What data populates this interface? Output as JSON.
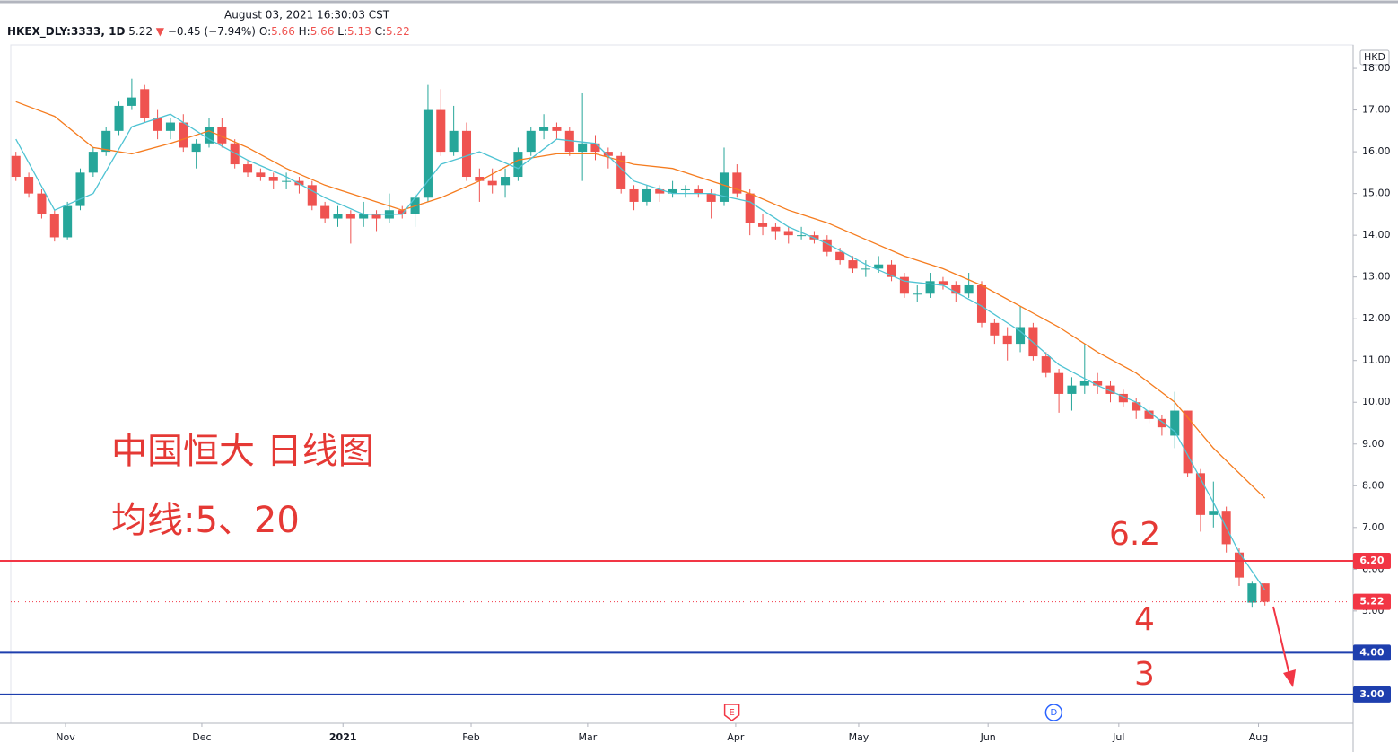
{
  "header": {
    "datetime": "August 03, 2021 16:30:03 CST",
    "symbol": "HKEX_DLY:3333, 1D",
    "last": "5.22",
    "direction": "▼",
    "change": "−0.45 (−7.94%)",
    "ohlc": [
      {
        "label": "O:",
        "value": "5.66"
      },
      {
        "label": "H:",
        "value": "5.66"
      },
      {
        "label": "L:",
        "value": "5.13"
      },
      {
        "label": "C:",
        "value": "5.22"
      }
    ]
  },
  "chart_data": {
    "type": "candlestick",
    "currency": "HKD",
    "up_color": "#26a69a",
    "down_color": "#ef5350",
    "ohlc": [
      [
        15.9,
        16.0,
        15.3,
        15.4
      ],
      [
        15.4,
        15.5,
        14.9,
        15.0
      ],
      [
        15.0,
        15.1,
        14.4,
        14.5
      ],
      [
        14.5,
        14.6,
        13.85,
        13.95
      ],
      [
        13.95,
        14.8,
        13.9,
        14.7
      ],
      [
        14.7,
        15.6,
        14.6,
        15.5
      ],
      [
        15.5,
        16.1,
        15.4,
        16.0
      ],
      [
        16.0,
        16.6,
        15.9,
        16.5
      ],
      [
        16.5,
        17.2,
        16.4,
        17.1
      ],
      [
        17.1,
        17.75,
        17.0,
        17.3
      ],
      [
        17.5,
        17.6,
        16.7,
        16.8
      ],
      [
        16.8,
        17.0,
        16.3,
        16.5
      ],
      [
        16.5,
        16.8,
        16.3,
        16.7
      ],
      [
        16.7,
        16.9,
        16.0,
        16.1
      ],
      [
        16.0,
        16.3,
        15.6,
        16.2
      ],
      [
        16.2,
        16.8,
        16.1,
        16.6
      ],
      [
        16.6,
        16.8,
        16.1,
        16.2
      ],
      [
        16.2,
        16.3,
        15.6,
        15.7
      ],
      [
        15.7,
        15.8,
        15.4,
        15.5
      ],
      [
        15.5,
        15.6,
        15.3,
        15.4
      ],
      [
        15.4,
        15.5,
        15.1,
        15.3
      ],
      [
        15.3,
        15.5,
        15.1,
        15.3
      ],
      [
        15.3,
        15.4,
        15.0,
        15.2
      ],
      [
        15.2,
        15.3,
        14.6,
        14.7
      ],
      [
        14.7,
        14.8,
        14.3,
        14.4
      ],
      [
        14.4,
        14.7,
        14.2,
        14.5
      ],
      [
        14.5,
        14.6,
        13.8,
        14.4
      ],
      [
        14.4,
        14.8,
        14.2,
        14.5
      ],
      [
        14.5,
        14.6,
        14.1,
        14.4
      ],
      [
        14.4,
        15.0,
        14.3,
        14.6
      ],
      [
        14.6,
        14.7,
        14.4,
        14.5
      ],
      [
        14.5,
        15.0,
        14.2,
        14.9
      ],
      [
        14.9,
        17.6,
        14.8,
        17.0
      ],
      [
        17.0,
        17.5,
        15.9,
        16.0
      ],
      [
        16.0,
        17.1,
        15.9,
        16.5
      ],
      [
        16.5,
        16.7,
        15.3,
        15.4
      ],
      [
        15.4,
        15.6,
        14.8,
        15.3
      ],
      [
        15.3,
        15.6,
        15.0,
        15.2
      ],
      [
        15.2,
        15.6,
        14.9,
        15.4
      ],
      [
        15.4,
        16.1,
        15.3,
        16.0
      ],
      [
        16.0,
        16.6,
        15.9,
        16.5
      ],
      [
        16.5,
        16.9,
        16.3,
        16.6
      ],
      [
        16.6,
        16.7,
        16.3,
        16.5
      ],
      [
        16.5,
        16.6,
        15.9,
        16.0
      ],
      [
        16.0,
        17.4,
        15.3,
        16.2
      ],
      [
        16.2,
        16.4,
        15.8,
        16.0
      ],
      [
        16.0,
        16.1,
        15.6,
        15.9
      ],
      [
        15.9,
        16.0,
        15.0,
        15.1
      ],
      [
        15.1,
        15.2,
        14.6,
        14.8
      ],
      [
        14.8,
        15.2,
        14.7,
        15.1
      ],
      [
        15.1,
        15.2,
        14.8,
        15.0
      ],
      [
        15.0,
        15.3,
        14.9,
        15.1
      ],
      [
        15.1,
        15.2,
        14.9,
        15.1
      ],
      [
        15.1,
        15.2,
        14.9,
        15.0
      ],
      [
        15.0,
        15.1,
        14.4,
        14.8
      ],
      [
        14.8,
        16.1,
        14.7,
        15.5
      ],
      [
        15.5,
        15.7,
        14.9,
        15.0
      ],
      [
        15.0,
        15.1,
        14.0,
        14.3
      ],
      [
        14.3,
        14.5,
        14.0,
        14.2
      ],
      [
        14.2,
        14.3,
        13.9,
        14.1
      ],
      [
        14.1,
        14.2,
        13.8,
        14.0
      ],
      [
        14.0,
        14.2,
        13.9,
        14.0
      ],
      [
        14.0,
        14.1,
        13.8,
        13.9
      ],
      [
        13.9,
        14.0,
        13.5,
        13.6
      ],
      [
        13.6,
        13.7,
        13.3,
        13.4
      ],
      [
        13.4,
        13.5,
        13.1,
        13.2
      ],
      [
        13.2,
        13.4,
        13.0,
        13.2
      ],
      [
        13.2,
        13.5,
        13.1,
        13.3
      ],
      [
        13.3,
        13.4,
        12.9,
        13.0
      ],
      [
        13.0,
        13.1,
        12.5,
        12.6
      ],
      [
        12.6,
        12.8,
        12.4,
        12.6
      ],
      [
        12.6,
        13.1,
        12.5,
        12.9
      ],
      [
        12.9,
        13.0,
        12.7,
        12.8
      ],
      [
        12.8,
        12.9,
        12.4,
        12.6
      ],
      [
        12.6,
        13.1,
        12.5,
        12.8
      ],
      [
        12.8,
        12.9,
        11.8,
        11.9
      ],
      [
        11.9,
        12.0,
        11.4,
        11.6
      ],
      [
        11.6,
        11.8,
        11.0,
        11.4
      ],
      [
        11.4,
        12.3,
        11.2,
        11.8
      ],
      [
        11.8,
        11.9,
        11.0,
        11.1
      ],
      [
        11.1,
        11.2,
        10.6,
        10.7
      ],
      [
        10.7,
        10.8,
        9.75,
        10.2
      ],
      [
        10.2,
        10.6,
        9.8,
        10.4
      ],
      [
        10.4,
        11.4,
        10.2,
        10.5
      ],
      [
        10.5,
        10.7,
        10.2,
        10.4
      ],
      [
        10.4,
        10.5,
        10.0,
        10.2
      ],
      [
        10.2,
        10.3,
        9.9,
        10.0
      ],
      [
        10.0,
        10.1,
        9.6,
        9.8
      ],
      [
        9.8,
        9.9,
        9.5,
        9.6
      ],
      [
        9.6,
        9.7,
        9.2,
        9.4
      ],
      [
        9.2,
        10.25,
        8.9,
        9.8
      ],
      [
        9.8,
        9.8,
        8.2,
        8.3
      ],
      [
        8.3,
        8.4,
        6.9,
        7.3
      ],
      [
        7.3,
        8.1,
        7.0,
        7.4
      ],
      [
        7.4,
        7.5,
        6.4,
        6.6
      ],
      [
        6.4,
        6.5,
        5.6,
        5.8
      ],
      [
        5.2,
        5.7,
        5.1,
        5.66
      ],
      [
        5.66,
        5.66,
        5.13,
        5.22
      ]
    ],
    "ma_lines": [
      {
        "color": "#f57c1f",
        "x": [
          0,
          3,
          6,
          9,
          12,
          15,
          18,
          21,
          24,
          27,
          30,
          33,
          36,
          39,
          42,
          45,
          48,
          51,
          54,
          57,
          60,
          63,
          66,
          69,
          72,
          75,
          78,
          81,
          84,
          87,
          90,
          93,
          97
        ],
        "values": [
          17.2,
          16.85,
          16.1,
          15.95,
          16.2,
          16.5,
          16.1,
          15.6,
          15.2,
          14.9,
          14.6,
          14.9,
          15.3,
          15.8,
          15.95,
          15.95,
          15.7,
          15.6,
          15.3,
          15.0,
          14.6,
          14.3,
          13.9,
          13.5,
          13.2,
          12.8,
          12.3,
          11.8,
          11.2,
          10.7,
          10.0,
          8.9,
          7.7
        ]
      },
      {
        "color": "#4fc3d3",
        "x": [
          0,
          3,
          6,
          9,
          12,
          15,
          18,
          21,
          24,
          27,
          30,
          33,
          36,
          39,
          42,
          45,
          48,
          51,
          54,
          57,
          60,
          63,
          66,
          69,
          72,
          75,
          78,
          81,
          84,
          87,
          90,
          93,
          95,
          97
        ],
        "values": [
          16.3,
          14.6,
          15.0,
          16.6,
          16.9,
          16.3,
          15.8,
          15.4,
          14.9,
          14.5,
          14.5,
          15.7,
          16.0,
          15.6,
          16.3,
          16.2,
          15.3,
          15.0,
          15.0,
          14.8,
          14.2,
          13.8,
          13.3,
          12.9,
          12.8,
          12.3,
          11.7,
          10.9,
          10.4,
          10.0,
          9.3,
          7.6,
          6.4,
          5.5
        ]
      }
    ],
    "ylim": [
      2.31,
      18.56
    ],
    "yticks": [
      {
        "value": 5,
        "label": "5.00"
      },
      {
        "value": 6,
        "label": "6.00"
      },
      {
        "value": 7,
        "label": "7.00"
      },
      {
        "value": 8,
        "label": "8.00"
      },
      {
        "value": 9,
        "label": "9.00"
      },
      {
        "value": 10,
        "label": "10.00"
      },
      {
        "value": 11,
        "label": "11.00"
      },
      {
        "value": 12,
        "label": "12.00"
      },
      {
        "value": 13,
        "label": "13.00"
      },
      {
        "value": 14,
        "label": "14.00"
      },
      {
        "value": 15,
        "label": "15.00"
      },
      {
        "value": 16,
        "label": "16.00"
      },
      {
        "value": 17,
        "label": "17.00"
      },
      {
        "value": 18,
        "label": "18.00"
      }
    ],
    "xlim": [
      -0.4,
      103.85
    ],
    "xticks": [
      {
        "value": 3.85,
        "label": "Nov"
      },
      {
        "value": 14.44,
        "label": "Dec"
      },
      {
        "value": 25.4,
        "label": "2021"
      },
      {
        "value": 35.35,
        "label": "Feb"
      },
      {
        "value": 44.4,
        "label": "Mar"
      },
      {
        "value": 55.9,
        "label": "Apr"
      },
      {
        "value": 65.45,
        "label": "May"
      },
      {
        "value": 75.5,
        "label": "Jun"
      },
      {
        "value": 85.65,
        "label": "Jul"
      },
      {
        "value": 96.5,
        "label": "Aug"
      }
    ],
    "levels": [
      {
        "value": 6.2,
        "label": "6.20",
        "color": "#f23645"
      },
      {
        "value": 4,
        "label": "4.00",
        "color": "#1e3fae"
      },
      {
        "value": 3,
        "label": "3.00",
        "color": "#1e3fae"
      }
    ],
    "last_price": {
      "value": 5.22,
      "label": "5.22",
      "color": "#f23645"
    },
    "events": [
      {
        "label": "E",
        "x": 55.6,
        "color": "#f23645"
      },
      {
        "label": "D",
        "x": 80.6,
        "color": "#2962ff"
      }
    ],
    "annotations": [
      "中国恒大 日线图",
      "均线:5、20",
      "6.2",
      "4",
      "3"
    ]
  }
}
